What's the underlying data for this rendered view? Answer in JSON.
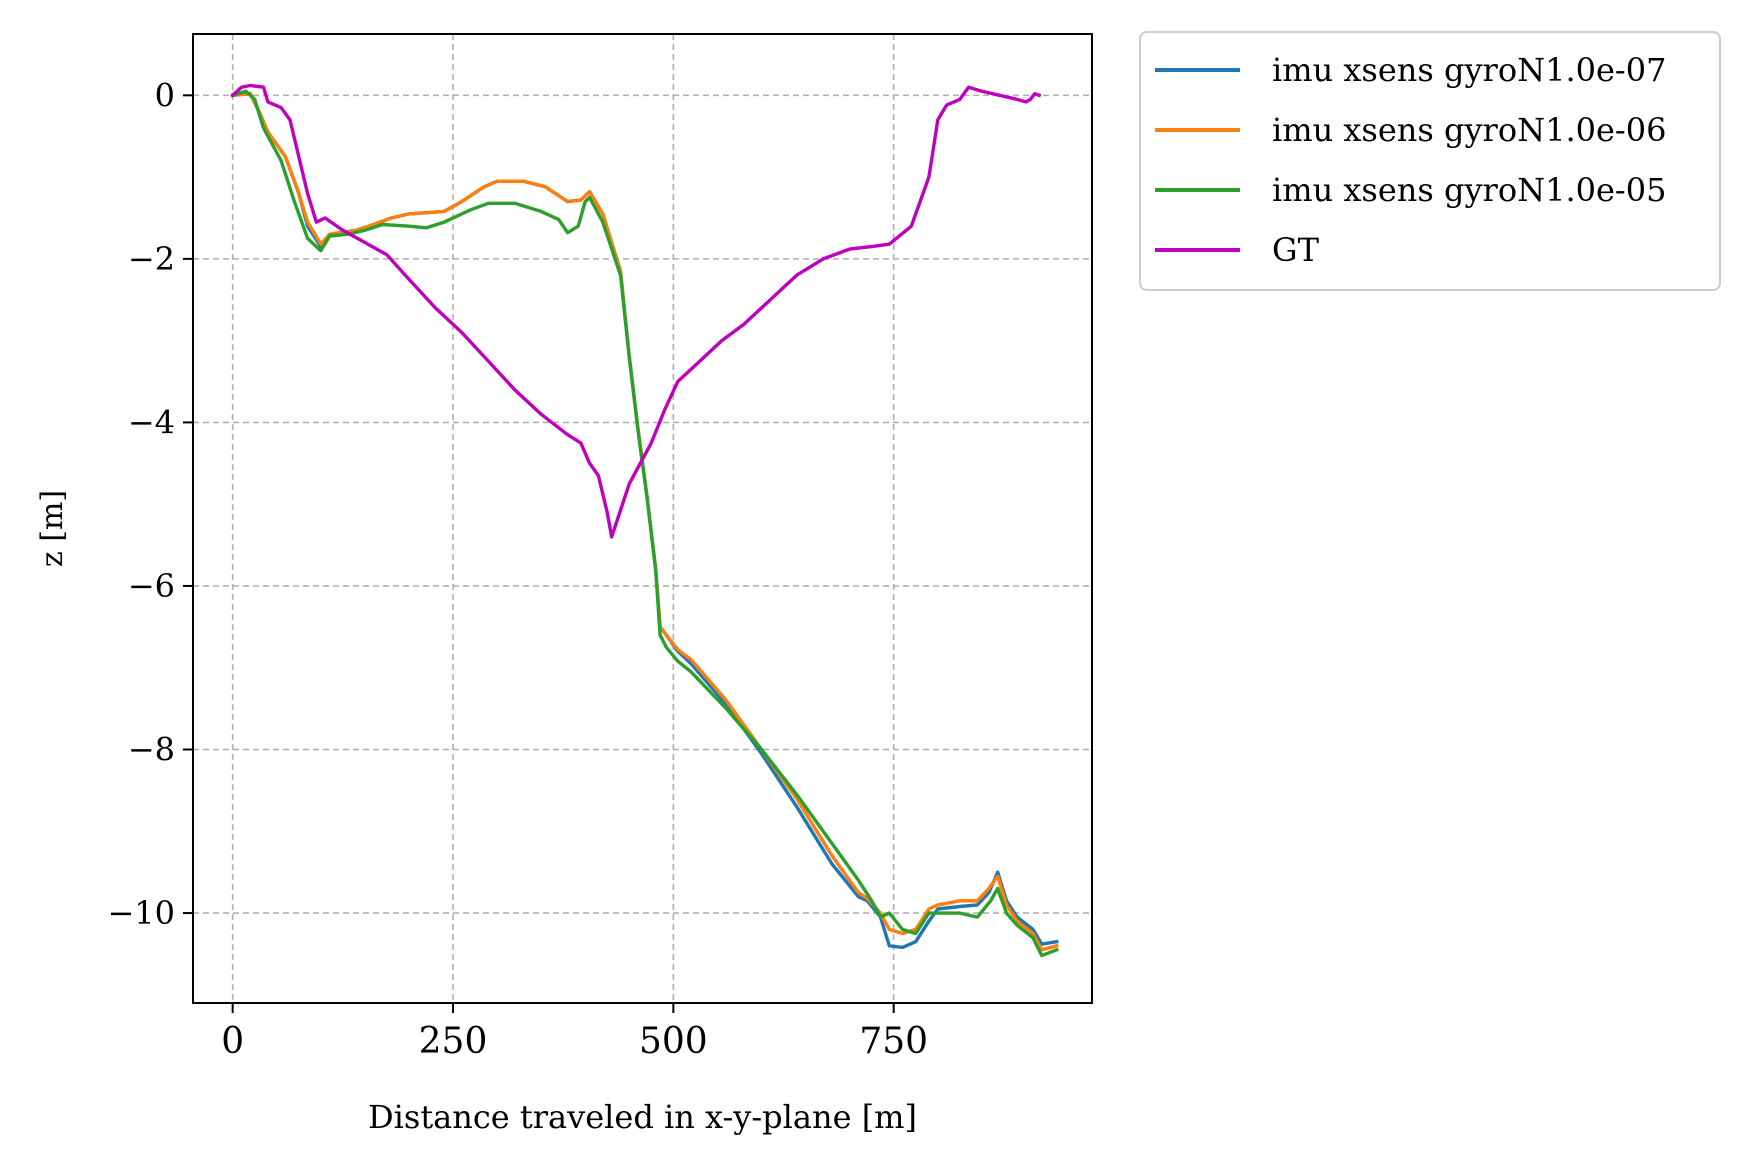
{
  "chart_data": {
    "type": "line",
    "title": "",
    "xlabel": "Distance traveled in x-y-plane [m]",
    "ylabel": "z [m]",
    "xlim": [
      -45,
      975
    ],
    "ylim": [
      -11.1,
      0.75
    ],
    "xticks": [
      0,
      250,
      500,
      750
    ],
    "xtick_labels": [
      "0",
      "250",
      "500",
      "750"
    ],
    "yticks": [
      0,
      -2,
      -4,
      -6,
      -8,
      -10
    ],
    "ytick_labels": [
      "0",
      "−2",
      "−4",
      "−6",
      "−8",
      "−10"
    ],
    "grid": true,
    "legend_position": "outside upper right",
    "series": [
      {
        "name": "imu xsens gyroN1.0e-07",
        "color": "#1f77b4",
        "points": [
          [
            0,
            0
          ],
          [
            20,
            0.02
          ],
          [
            30,
            -0.2
          ],
          [
            40,
            -0.45
          ],
          [
            60,
            -0.75
          ],
          [
            75,
            -1.2
          ],
          [
            85,
            -1.6
          ],
          [
            100,
            -1.85
          ],
          [
            110,
            -1.7
          ],
          [
            140,
            -1.65
          ],
          [
            160,
            -1.58
          ],
          [
            180,
            -1.5
          ],
          [
            200,
            -1.45
          ],
          [
            240,
            -1.42
          ],
          [
            260,
            -1.3
          ],
          [
            285,
            -1.12
          ],
          [
            300,
            -1.05
          ],
          [
            330,
            -1.05
          ],
          [
            355,
            -1.12
          ],
          [
            380,
            -1.3
          ],
          [
            395,
            -1.28
          ],
          [
            405,
            -1.18
          ],
          [
            420,
            -1.45
          ],
          [
            440,
            -2.15
          ],
          [
            450,
            -3.2
          ],
          [
            460,
            -4.1
          ],
          [
            470,
            -4.9
          ],
          [
            480,
            -5.8
          ],
          [
            485,
            -6.5
          ],
          [
            492,
            -6.6
          ],
          [
            505,
            -6.8
          ],
          [
            520,
            -6.95
          ],
          [
            560,
            -7.45
          ],
          [
            600,
            -8.05
          ],
          [
            640,
            -8.7
          ],
          [
            680,
            -9.4
          ],
          [
            710,
            -9.8
          ],
          [
            720,
            -9.85
          ],
          [
            735,
            -10.05
          ],
          [
            745,
            -10.4
          ],
          [
            760,
            -10.42
          ],
          [
            775,
            -10.35
          ],
          [
            790,
            -10.1
          ],
          [
            800,
            -9.95
          ],
          [
            825,
            -9.92
          ],
          [
            845,
            -9.9
          ],
          [
            858,
            -9.75
          ],
          [
            868,
            -9.5
          ],
          [
            878,
            -9.85
          ],
          [
            890,
            -10.05
          ],
          [
            908,
            -10.2
          ],
          [
            918,
            -10.38
          ],
          [
            935,
            -10.35
          ]
        ]
      },
      {
        "name": "imu xsens gyroN1.0e-06",
        "color": "#ff7f0e",
        "points": [
          [
            0,
            0
          ],
          [
            20,
            0.02
          ],
          [
            30,
            -0.2
          ],
          [
            40,
            -0.45
          ],
          [
            60,
            -0.75
          ],
          [
            75,
            -1.2
          ],
          [
            85,
            -1.55
          ],
          [
            100,
            -1.82
          ],
          [
            110,
            -1.7
          ],
          [
            140,
            -1.65
          ],
          [
            160,
            -1.58
          ],
          [
            180,
            -1.5
          ],
          [
            200,
            -1.45
          ],
          [
            240,
            -1.42
          ],
          [
            260,
            -1.3
          ],
          [
            285,
            -1.12
          ],
          [
            300,
            -1.05
          ],
          [
            330,
            -1.05
          ],
          [
            355,
            -1.12
          ],
          [
            380,
            -1.3
          ],
          [
            395,
            -1.28
          ],
          [
            405,
            -1.18
          ],
          [
            420,
            -1.45
          ],
          [
            440,
            -2.15
          ],
          [
            450,
            -3.2
          ],
          [
            460,
            -4.1
          ],
          [
            470,
            -4.9
          ],
          [
            480,
            -5.8
          ],
          [
            485,
            -6.5
          ],
          [
            492,
            -6.6
          ],
          [
            505,
            -6.78
          ],
          [
            520,
            -6.9
          ],
          [
            560,
            -7.4
          ],
          [
            600,
            -8.0
          ],
          [
            640,
            -8.6
          ],
          [
            680,
            -9.3
          ],
          [
            710,
            -9.75
          ],
          [
            720,
            -9.82
          ],
          [
            735,
            -10.0
          ],
          [
            745,
            -10.2
          ],
          [
            760,
            -10.25
          ],
          [
            775,
            -10.2
          ],
          [
            790,
            -9.95
          ],
          [
            800,
            -9.9
          ],
          [
            825,
            -9.85
          ],
          [
            845,
            -9.85
          ],
          [
            858,
            -9.7
          ],
          [
            868,
            -9.55
          ],
          [
            878,
            -9.9
          ],
          [
            890,
            -10.1
          ],
          [
            908,
            -10.25
          ],
          [
            918,
            -10.45
          ],
          [
            935,
            -10.4
          ]
        ]
      },
      {
        "name": "imu xsens gyroN1.0e-05",
        "color": "#2ca02c",
        "points": [
          [
            0,
            0
          ],
          [
            15,
            0.05
          ],
          [
            25,
            -0.05
          ],
          [
            35,
            -0.4
          ],
          [
            55,
            -0.8
          ],
          [
            70,
            -1.3
          ],
          [
            85,
            -1.75
          ],
          [
            100,
            -1.9
          ],
          [
            110,
            -1.72
          ],
          [
            130,
            -1.7
          ],
          [
            150,
            -1.65
          ],
          [
            170,
            -1.58
          ],
          [
            200,
            -1.6
          ],
          [
            220,
            -1.62
          ],
          [
            240,
            -1.55
          ],
          [
            270,
            -1.4
          ],
          [
            290,
            -1.32
          ],
          [
            320,
            -1.32
          ],
          [
            350,
            -1.42
          ],
          [
            370,
            -1.52
          ],
          [
            380,
            -1.68
          ],
          [
            392,
            -1.6
          ],
          [
            400,
            -1.3
          ],
          [
            405,
            -1.25
          ],
          [
            420,
            -1.55
          ],
          [
            440,
            -2.2
          ],
          [
            450,
            -3.2
          ],
          [
            460,
            -4.1
          ],
          [
            470,
            -4.9
          ],
          [
            480,
            -5.8
          ],
          [
            485,
            -6.6
          ],
          [
            492,
            -6.75
          ],
          [
            505,
            -6.92
          ],
          [
            520,
            -7.05
          ],
          [
            560,
            -7.5
          ],
          [
            600,
            -8.0
          ],
          [
            640,
            -8.55
          ],
          [
            680,
            -9.15
          ],
          [
            710,
            -9.6
          ],
          [
            725,
            -9.85
          ],
          [
            735,
            -10.05
          ],
          [
            745,
            -10.0
          ],
          [
            760,
            -10.2
          ],
          [
            775,
            -10.25
          ],
          [
            790,
            -10.0
          ],
          [
            800,
            -10.0
          ],
          [
            825,
            -10.0
          ],
          [
            845,
            -10.05
          ],
          [
            860,
            -9.85
          ],
          [
            868,
            -9.7
          ],
          [
            878,
            -10.0
          ],
          [
            890,
            -10.15
          ],
          [
            908,
            -10.3
          ],
          [
            918,
            -10.52
          ],
          [
            935,
            -10.45
          ]
        ]
      },
      {
        "name": "GT",
        "color": "#bf00bf",
        "points": [
          [
            0,
            0
          ],
          [
            5,
            0.05
          ],
          [
            10,
            0.1
          ],
          [
            20,
            0.12
          ],
          [
            35,
            0.1
          ],
          [
            40,
            -0.08
          ],
          [
            55,
            -0.15
          ],
          [
            65,
            -0.3
          ],
          [
            75,
            -0.75
          ],
          [
            85,
            -1.2
          ],
          [
            95,
            -1.55
          ],
          [
            105,
            -1.5
          ],
          [
            125,
            -1.65
          ],
          [
            150,
            -1.8
          ],
          [
            175,
            -1.95
          ],
          [
            200,
            -2.25
          ],
          [
            230,
            -2.6
          ],
          [
            260,
            -2.9
          ],
          [
            290,
            -3.25
          ],
          [
            320,
            -3.6
          ],
          [
            350,
            -3.9
          ],
          [
            380,
            -4.15
          ],
          [
            395,
            -4.25
          ],
          [
            405,
            -4.5
          ],
          [
            415,
            -4.65
          ],
          [
            425,
            -5.1
          ],
          [
            430,
            -5.4
          ],
          [
            450,
            -4.75
          ],
          [
            475,
            -4.25
          ],
          [
            490,
            -3.85
          ],
          [
            505,
            -3.5
          ],
          [
            525,
            -3.3
          ],
          [
            555,
            -3.0
          ],
          [
            580,
            -2.8
          ],
          [
            610,
            -2.5
          ],
          [
            640,
            -2.2
          ],
          [
            670,
            -2.0
          ],
          [
            700,
            -1.88
          ],
          [
            725,
            -1.85
          ],
          [
            745,
            -1.82
          ],
          [
            770,
            -1.6
          ],
          [
            790,
            -1.0
          ],
          [
            800,
            -0.3
          ],
          [
            810,
            -0.12
          ],
          [
            825,
            -0.05
          ],
          [
            835,
            0.1
          ],
          [
            850,
            0.05
          ],
          [
            870,
            0.0
          ],
          [
            890,
            -0.05
          ],
          [
            900,
            -0.08
          ],
          [
            905,
            -0.05
          ],
          [
            910,
            0.02
          ],
          [
            915,
            0.0
          ]
        ]
      }
    ]
  }
}
